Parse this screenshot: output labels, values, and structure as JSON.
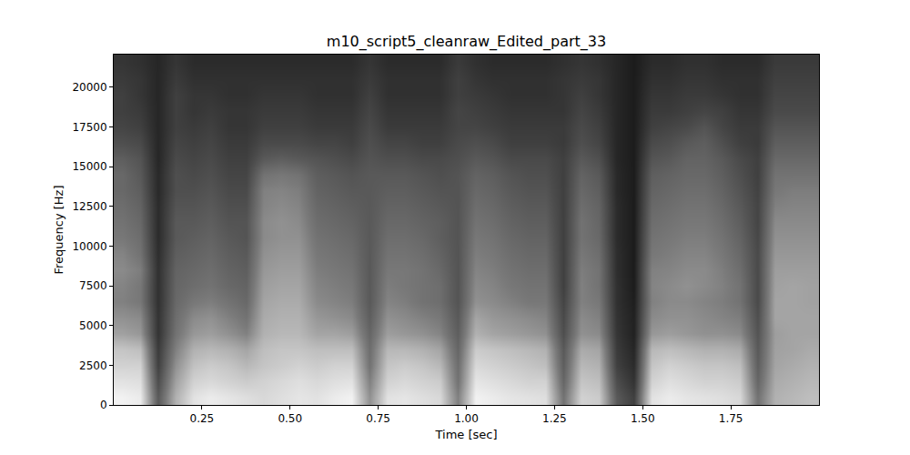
{
  "chart_data": {
    "type": "heatmap",
    "title": "m10_script5_cleanraw_Edited_part_33",
    "xlabel": "Time [sec]",
    "ylabel": "Frequency [Hz]",
    "x": [
      0,
      0.05,
      0.1,
      0.15,
      0.2,
      0.25,
      0.3,
      0.35,
      0.4,
      0.45,
      0.5,
      0.55,
      0.6,
      0.65,
      0.7,
      0.75,
      0.8,
      0.85,
      0.9,
      0.95,
      1.0,
      1.05,
      1.1,
      1.15,
      1.2,
      1.25,
      1.3,
      1.35,
      1.4,
      1.45,
      1.5,
      1.55,
      1.6,
      1.65,
      1.7,
      1.75,
      1.8,
      1.85,
      1.9,
      1.95,
      2.0
    ],
    "y": [
      0,
      1000,
      2000,
      3000,
      4000,
      5000,
      6000,
      7000,
      8000,
      9000,
      10000,
      11000,
      12000,
      13000,
      14000,
      15000,
      16000,
      17000,
      18000,
      19000,
      20000,
      21000,
      22050
    ],
    "z": [
      [
        90,
        88,
        40,
        70,
        85,
        88,
        86,
        84,
        82,
        84,
        86,
        85,
        88,
        90,
        60,
        85,
        86,
        84,
        82,
        55,
        90,
        88,
        86,
        85,
        84,
        50,
        80,
        78,
        40,
        30,
        85,
        88,
        86,
        85,
        84,
        82,
        50,
        70,
        72,
        74
      ],
      [
        85,
        84,
        35,
        65,
        80,
        82,
        80,
        78,
        80,
        82,
        84,
        82,
        84,
        85,
        55,
        80,
        82,
        80,
        78,
        50,
        86,
        84,
        82,
        80,
        80,
        45,
        76,
        74,
        35,
        25,
        80,
        84,
        82,
        80,
        80,
        78,
        45,
        68,
        70,
        72
      ],
      [
        80,
        80,
        30,
        60,
        75,
        78,
        76,
        72,
        76,
        78,
        80,
        78,
        80,
        80,
        50,
        76,
        78,
        76,
        72,
        48,
        82,
        80,
        78,
        76,
        74,
        42,
        72,
        70,
        30,
        22,
        76,
        80,
        78,
        76,
        76,
        74,
        42,
        66,
        68,
        70
      ],
      [
        76,
        74,
        28,
        55,
        70,
        72,
        70,
        66,
        74,
        76,
        76,
        74,
        74,
        74,
        48,
        72,
        72,
        70,
        66,
        45,
        78,
        76,
        74,
        72,
        70,
        40,
        68,
        66,
        28,
        20,
        72,
        74,
        72,
        70,
        70,
        68,
        40,
        65,
        66,
        68
      ],
      [
        65,
        62,
        25,
        50,
        62,
        64,
        60,
        55,
        70,
        72,
        72,
        66,
        66,
        64,
        45,
        64,
        62,
        60,
        56,
        42,
        70,
        66,
        64,
        62,
        60,
        36,
        60,
        58,
        26,
        18,
        62,
        64,
        62,
        60,
        60,
        58,
        38,
        64,
        66,
        66
      ],
      [
        60,
        58,
        25,
        48,
        58,
        60,
        55,
        50,
        68,
        70,
        70,
        62,
        60,
        58,
        42,
        60,
        58,
        55,
        52,
        40,
        66,
        62,
        60,
        58,
        56,
        34,
        58,
        55,
        25,
        18,
        58,
        60,
        60,
        58,
        56,
        54,
        36,
        66,
        66,
        66
      ],
      [
        55,
        52,
        24,
        46,
        52,
        54,
        50,
        46,
        66,
        68,
        68,
        58,
        56,
        54,
        40,
        56,
        54,
        50,
        48,
        38,
        60,
        58,
        55,
        52,
        52,
        32,
        55,
        52,
        24,
        17,
        55,
        58,
        58,
        56,
        54,
        50,
        34,
        66,
        66,
        65
      ],
      [
        56,
        52,
        24,
        45,
        48,
        50,
        46,
        44,
        64,
        66,
        66,
        56,
        54,
        52,
        40,
        54,
        52,
        50,
        48,
        38,
        58,
        56,
        52,
        50,
        50,
        30,
        55,
        50,
        24,
        16,
        56,
        58,
        60,
        58,
        55,
        50,
        34,
        65,
        66,
        65
      ],
      [
        58,
        54,
        24,
        44,
        46,
        48,
        44,
        42,
        62,
        64,
        64,
        54,
        52,
        50,
        40,
        52,
        52,
        50,
        46,
        38,
        56,
        54,
        50,
        48,
        48,
        30,
        54,
        50,
        23,
        16,
        55,
        56,
        58,
        58,
        54,
        48,
        34,
        64,
        64,
        64
      ],
      [
        56,
        50,
        23,
        42,
        44,
        46,
        42,
        40,
        60,
        62,
        62,
        52,
        50,
        48,
        40,
        50,
        50,
        48,
        44,
        38,
        54,
        52,
        48,
        46,
        46,
        30,
        52,
        48,
        23,
        16,
        52,
        54,
        56,
        56,
        52,
        46,
        34,
        62,
        62,
        62
      ],
      [
        52,
        48,
        22,
        40,
        42,
        44,
        40,
        38,
        58,
        60,
        60,
        50,
        48,
        46,
        40,
        48,
        48,
        46,
        42,
        38,
        52,
        50,
        46,
        44,
        44,
        30,
        50,
        46,
        22,
        16,
        50,
        52,
        54,
        54,
        50,
        44,
        33,
        60,
        60,
        60
      ],
      [
        50,
        46,
        22,
        40,
        40,
        42,
        38,
        38,
        58,
        60,
        58,
        48,
        46,
        44,
        40,
        46,
        46,
        44,
        42,
        38,
        50,
        48,
        44,
        42,
        42,
        30,
        50,
        45,
        22,
        16,
        48,
        50,
        52,
        52,
        48,
        42,
        32,
        58,
        58,
        58
      ],
      [
        48,
        44,
        22,
        38,
        38,
        40,
        36,
        36,
        56,
        58,
        56,
        46,
        44,
        42,
        40,
        44,
        44,
        42,
        40,
        38,
        48,
        46,
        42,
        40,
        40,
        30,
        48,
        44,
        22,
        16,
        46,
        48,
        50,
        50,
        46,
        40,
        32,
        55,
        56,
        56
      ],
      [
        46,
        42,
        21,
        36,
        36,
        38,
        34,
        34,
        55,
        56,
        54,
        44,
        42,
        40,
        40,
        42,
        42,
        40,
        38,
        38,
        46,
        44,
        40,
        38,
        38,
        30,
        46,
        42,
        21,
        16,
        44,
        46,
        48,
        48,
        44,
        38,
        31,
        52,
        54,
        54
      ],
      [
        46,
        40,
        21,
        36,
        34,
        36,
        32,
        32,
        50,
        52,
        50,
        42,
        40,
        38,
        40,
        40,
        40,
        38,
        36,
        38,
        44,
        42,
        38,
        36,
        36,
        30,
        44,
        40,
        21,
        16,
        42,
        44,
        46,
        46,
        42,
        36,
        30,
        50,
        50,
        50
      ],
      [
        42,
        38,
        20,
        34,
        32,
        34,
        30,
        30,
        40,
        42,
        40,
        38,
        36,
        34,
        38,
        36,
        36,
        34,
        34,
        36,
        40,
        38,
        34,
        34,
        34,
        30,
        40,
        36,
        20,
        16,
        38,
        40,
        44,
        44,
        40,
        34,
        30,
        46,
        46,
        46
      ],
      [
        36,
        34,
        20,
        32,
        30,
        32,
        28,
        28,
        34,
        34,
        34,
        32,
        32,
        30,
        36,
        32,
        32,
        30,
        30,
        34,
        36,
        34,
        30,
        30,
        30,
        28,
        36,
        32,
        20,
        16,
        34,
        36,
        40,
        42,
        36,
        30,
        28,
        42,
        42,
        42
      ],
      [
        32,
        30,
        20,
        30,
        28,
        30,
        26,
        26,
        30,
        30,
        30,
        28,
        28,
        28,
        34,
        28,
        28,
        28,
        28,
        32,
        32,
        30,
        28,
        28,
        28,
        28,
        34,
        30,
        20,
        16,
        30,
        32,
        34,
        38,
        32,
        28,
        28,
        38,
        38,
        38
      ],
      [
        30,
        28,
        20,
        30,
        26,
        28,
        26,
        26,
        28,
        28,
        28,
        26,
        26,
        26,
        32,
        26,
        26,
        26,
        26,
        32,
        30,
        28,
        26,
        26,
        26,
        26,
        32,
        28,
        20,
        16,
        28,
        28,
        30,
        32,
        30,
        26,
        26,
        34,
        34,
        34
      ],
      [
        30,
        26,
        20,
        30,
        26,
        26,
        24,
        24,
        26,
        26,
        26,
        24,
        24,
        24,
        30,
        24,
        24,
        24,
        24,
        30,
        28,
        26,
        24,
        24,
        24,
        26,
        30,
        26,
        20,
        16,
        26,
        26,
        28,
        28,
        26,
        24,
        24,
        32,
        32,
        32
      ],
      [
        28,
        26,
        20,
        28,
        24,
        24,
        24,
        24,
        24,
        24,
        24,
        24,
        24,
        24,
        28,
        24,
        24,
        24,
        24,
        30,
        26,
        24,
        24,
        24,
        24,
        26,
        28,
        26,
        20,
        16,
        24,
        24,
        26,
        26,
        24,
        24,
        24,
        30,
        30,
        30
      ],
      [
        26,
        24,
        20,
        26,
        22,
        22,
        22,
        22,
        22,
        22,
        22,
        22,
        22,
        22,
        26,
        22,
        22,
        22,
        22,
        28,
        24,
        22,
        22,
        22,
        22,
        24,
        26,
        24,
        20,
        16,
        22,
        22,
        24,
        24,
        22,
        22,
        22,
        28,
        28,
        28
      ]
    ],
    "xlim": [
      0,
      2.0
    ],
    "ylim": [
      0,
      22050
    ],
    "xticks": [
      {
        "value": 0.25,
        "label": "0.25"
      },
      {
        "value": 0.5,
        "label": "0.50"
      },
      {
        "value": 0.75,
        "label": "0.75"
      },
      {
        "value": 1.0,
        "label": "1.00"
      },
      {
        "value": 1.25,
        "label": "1.25"
      },
      {
        "value": 1.5,
        "label": "1.50"
      },
      {
        "value": 1.75,
        "label": "1.75"
      }
    ],
    "yticks": [
      0,
      2500,
      5000,
      7500,
      10000,
      12500,
      15000,
      17500,
      20000
    ]
  }
}
